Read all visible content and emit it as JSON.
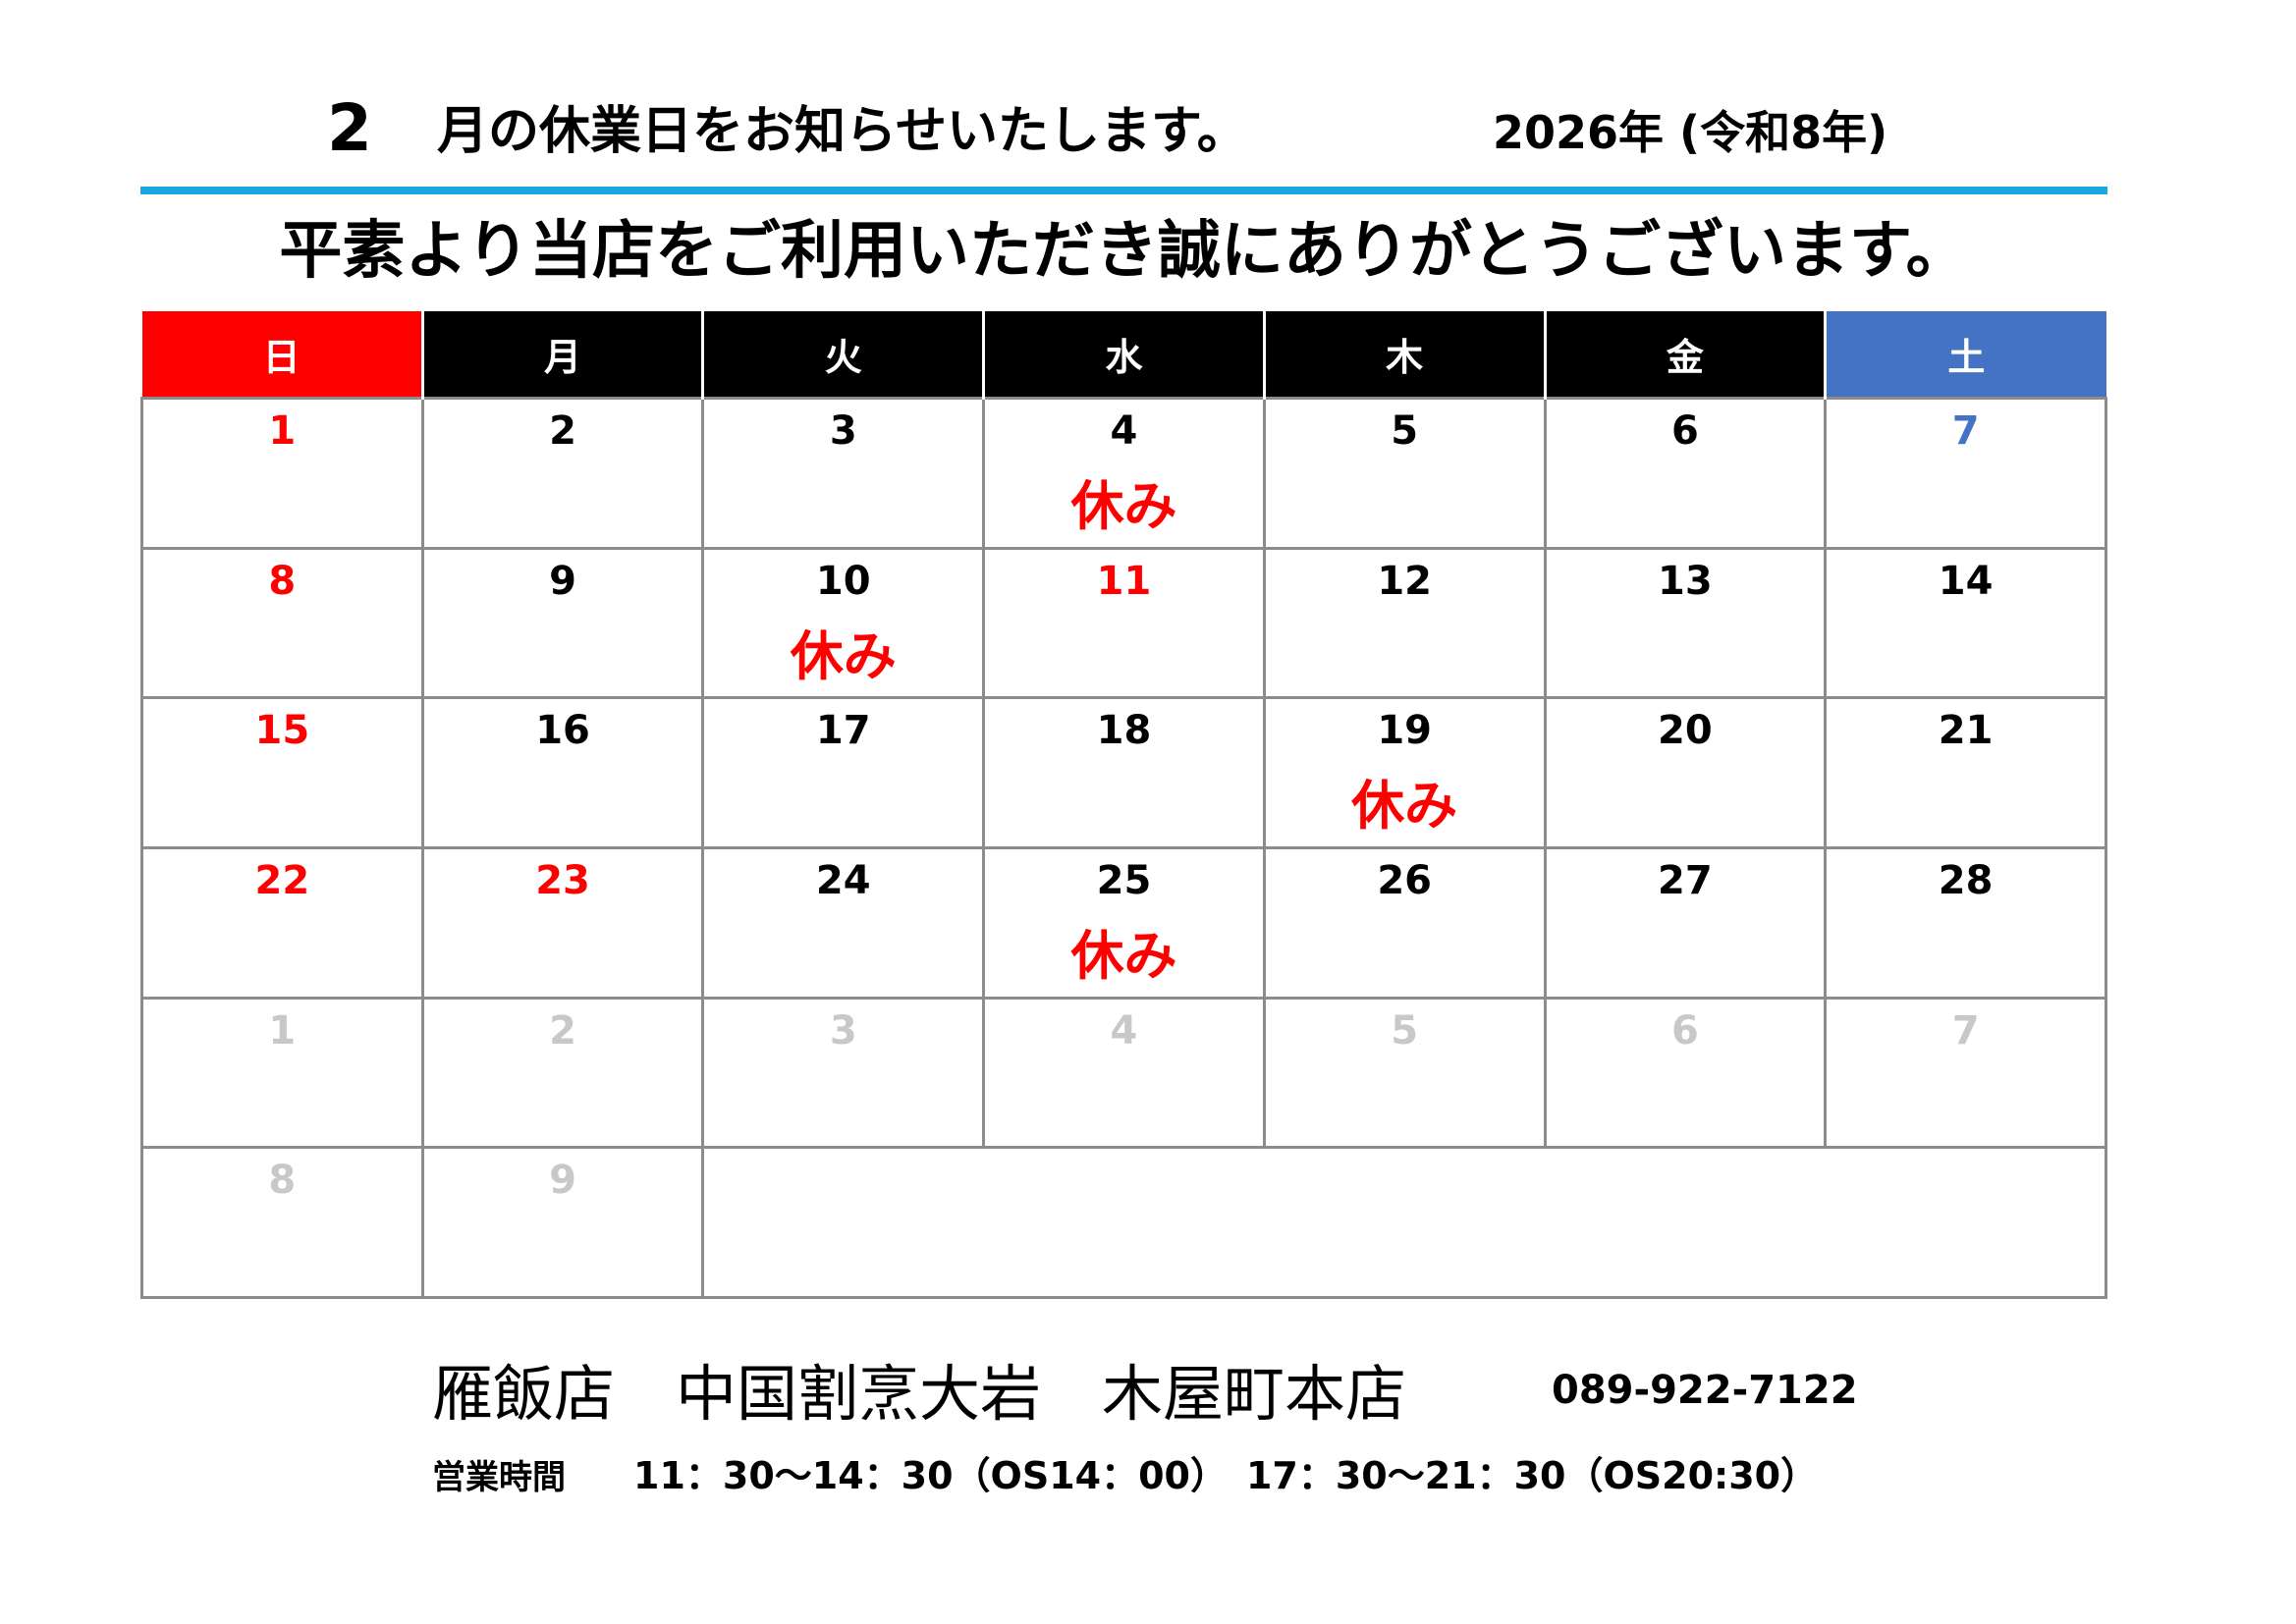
{
  "header": {
    "month": "2",
    "headline": "月の休業日をお知らせいたします。",
    "year": "2026年 (令和8年)"
  },
  "greeting": "平素より当店をご利用いただき誠にありがとうございます。",
  "holiday_label": "休み",
  "weekdays": [
    "日",
    "月",
    "火",
    "水",
    "木",
    "金",
    "土"
  ],
  "weeks": [
    [
      {
        "day": "1",
        "color": "red"
      },
      {
        "day": "2"
      },
      {
        "day": "3"
      },
      {
        "day": "4",
        "holiday": true
      },
      {
        "day": "5"
      },
      {
        "day": "6"
      },
      {
        "day": "7",
        "color": "blue"
      }
    ],
    [
      {
        "day": "8",
        "color": "red"
      },
      {
        "day": "9"
      },
      {
        "day": "10",
        "holiday": true
      },
      {
        "day": "11",
        "color": "red"
      },
      {
        "day": "12"
      },
      {
        "day": "13"
      },
      {
        "day": "14"
      }
    ],
    [
      {
        "day": "15",
        "color": "red"
      },
      {
        "day": "16"
      },
      {
        "day": "17"
      },
      {
        "day": "18"
      },
      {
        "day": "19",
        "holiday": true
      },
      {
        "day": "20"
      },
      {
        "day": "21"
      }
    ],
    [
      {
        "day": "22",
        "color": "red"
      },
      {
        "day": "23",
        "color": "red"
      },
      {
        "day": "24"
      },
      {
        "day": "25",
        "holiday": true
      },
      {
        "day": "26"
      },
      {
        "day": "27"
      },
      {
        "day": "28"
      }
    ],
    [
      {
        "day": "1",
        "color": "grey"
      },
      {
        "day": "2",
        "color": "grey"
      },
      {
        "day": "3",
        "color": "grey"
      },
      {
        "day": "4",
        "color": "grey"
      },
      {
        "day": "5",
        "color": "grey"
      },
      {
        "day": "6",
        "color": "grey"
      },
      {
        "day": "7",
        "color": "grey"
      }
    ],
    [
      {
        "day": "8",
        "color": "grey"
      },
      {
        "day": "9",
        "color": "grey"
      }
    ]
  ],
  "footer": {
    "shop_name": "雁飯店　中国割烹大岩　木屋町本店",
    "phone": "089-922-7122",
    "hours_label": "営業時間",
    "hours": "11：30～14：30（OS14：00）　17：30～21：30（OS20:30）"
  },
  "colors": {
    "rule": "#1ba8e2",
    "sunday": "#ff0000",
    "saturday": "#4472c4",
    "weekday_header": "#000000",
    "holiday_text": "#ff0000",
    "next_month": "#c8c8c8"
  }
}
